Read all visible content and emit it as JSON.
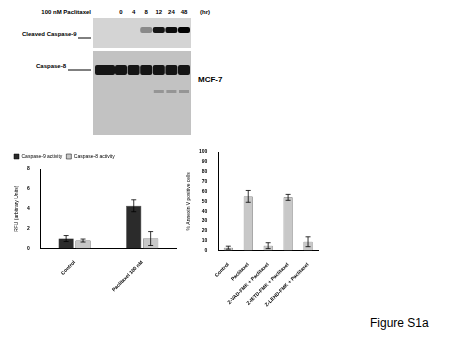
{
  "blot": {
    "treatment": "100 nM Paclitaxel",
    "lanes": [
      0,
      4,
      8,
      12,
      24,
      48
    ],
    "unit": "(hr)",
    "rows": [
      "Cleaved Caspase-9",
      "Caspase-8"
    ],
    "cell_line": "MCF-7"
  },
  "chart_data": [
    {
      "type": "bar",
      "y_label": "RFU (arbitrary Units)",
      "categories": [
        "Control",
        "Paclitaxel 100 nM"
      ],
      "series": [
        {
          "name": "Caspase-9 activity",
          "color": "#2b2b2b",
          "values": [
            1.0,
            4.3
          ],
          "errors": [
            0.3,
            0.6
          ]
        },
        {
          "name": "Caspase-8 activity",
          "color": "#c8c8c8",
          "values": [
            0.8,
            1.0
          ],
          "errors": [
            0.15,
            0.7
          ]
        }
      ],
      "ylim": [
        0,
        8
      ],
      "yticks": [
        0,
        2,
        4,
        6,
        8
      ],
      "grid": false,
      "legend": "top"
    },
    {
      "type": "bar",
      "y_label": "% Annexin V positive cells",
      "categories": [
        "Control",
        "Paclitaxel",
        "Z-VAD-FMK + Paclitaxel",
        "Z-IETD-FMK + Paclitaxel",
        "Z-LEHD-FMK + Paclitaxel"
      ],
      "values": [
        3,
        55,
        5,
        54,
        9
      ],
      "errors": [
        1.5,
        6,
        3,
        3,
        5
      ],
      "color": "#c8c8c8",
      "ylim": [
        0,
        100
      ],
      "yticks": [
        0,
        10,
        20,
        30,
        40,
        50,
        60,
        70,
        80,
        90,
        100
      ],
      "grid": false
    }
  ],
  "figure_label": "Figure S1a"
}
